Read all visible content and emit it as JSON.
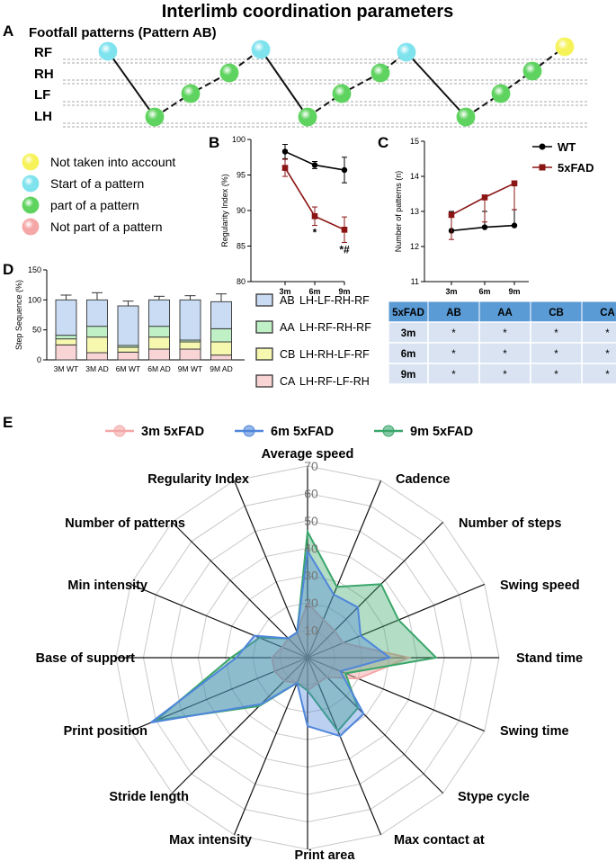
{
  "figure": {
    "title": "Interlimb coordination parameters",
    "panels": {
      "a": "A",
      "b": "B",
      "c": "C",
      "d": "D",
      "e": "E"
    }
  },
  "colors": {
    "wt": "#000000",
    "fad": "#8b1414",
    "cyan": "#7fe3ee",
    "green": "#5fd35f",
    "yellow": "#f6f35a",
    "pink": "#f5a6a6",
    "AB": "#c9dcf4",
    "AA": "#bff0c6",
    "CB": "#f6f8b0",
    "CA": "#f8d4d4",
    "table_head": "#5b9bd5",
    "table_row": "#d9e3f2",
    "radar_3m": "#f4a7a7",
    "radar_6m": "#4f86db",
    "radar_9m": "#3aa66a"
  },
  "panel_a": {
    "title": "Footfall patterns (Pattern AB)",
    "limbs": [
      "RF",
      "RH",
      "LF",
      "LH"
    ],
    "legend": [
      {
        "color": "yellow",
        "label": "Not taken into account"
      },
      {
        "color": "cyan",
        "label": "Start of a pattern"
      },
      {
        "color": "green",
        "label": "part of a pattern"
      },
      {
        "color": "pink",
        "label": "Not part of a pattern"
      }
    ]
  },
  "chart_data": [
    {
      "id": "B",
      "type": "line",
      "title": "",
      "xlabel": "",
      "ylabel": "Regularity Index (%)",
      "categories": [
        "3m",
        "6m",
        "9m"
      ],
      "ylim": [
        80,
        100
      ],
      "yticks": [
        "80",
        "85",
        "90",
        "95",
        "100"
      ],
      "series": [
        {
          "name": "WT",
          "color": "wt",
          "values": [
            98.3,
            96.4,
            95.7
          ],
          "errors": [
            1.0,
            0.5,
            1.8
          ]
        },
        {
          "name": "5xFAD",
          "color": "fad",
          "values": [
            96.0,
            89.2,
            87.3
          ],
          "errors": [
            1.2,
            1.3,
            1.8
          ]
        }
      ],
      "annotations": [
        {
          "category": "6m",
          "text": "*"
        },
        {
          "category": "9m",
          "text": "*#"
        }
      ]
    },
    {
      "id": "C",
      "type": "line",
      "title": "",
      "xlabel": "",
      "ylabel": "Number of patterns (n)",
      "categories": [
        "3m",
        "6m",
        "9m"
      ],
      "ylim": [
        11,
        15
      ],
      "yticks": [
        "11",
        "12",
        "13",
        "14",
        "15"
      ],
      "legend_position": "top-right",
      "series": [
        {
          "name": "WT",
          "color": "wt",
          "values": [
            12.45,
            12.55,
            12.6
          ],
          "errors": [
            0.55,
            0.45,
            0.45
          ]
        },
        {
          "name": "5xFAD",
          "color": "fad",
          "values": [
            12.9,
            13.4,
            13.8
          ],
          "errors": [
            0.7,
            0.7,
            0.75
          ]
        }
      ]
    },
    {
      "id": "D",
      "type": "bar",
      "title": "",
      "xlabel": "",
      "ylabel": "Step Sequence (%)",
      "categories": [
        "3M WT",
        "3M AD",
        "6M WT",
        "6M AD",
        "9M WT",
        "9M AD"
      ],
      "ylim": [
        0,
        150
      ],
      "yticks": [
        "0",
        "50",
        "100",
        "150"
      ],
      "stacked": true,
      "series": [
        {
          "name": "CA",
          "label": "LH-RF-LF-RH",
          "color": "CA",
          "values": [
            25,
            12,
            13,
            18,
            18,
            8
          ],
          "errors": [
            6,
            7,
            4,
            7,
            7,
            4
          ]
        },
        {
          "name": "CB",
          "label": "LH-RH-LF-RF",
          "color": "CB",
          "values": [
            10,
            26,
            8,
            20,
            12,
            22
          ],
          "errors": [
            4,
            8,
            3,
            8,
            4,
            8
          ]
        },
        {
          "name": "AA",
          "label": "LH-RF-RH-RF",
          "color": "AA",
          "values": [
            6,
            18,
            3,
            18,
            3,
            22
          ],
          "errors": [
            3,
            8,
            2,
            7,
            2,
            11
          ]
        },
        {
          "name": "AB",
          "label": "LH-LF-RH-RF",
          "color": "AB",
          "values": [
            59,
            44,
            66,
            44,
            67,
            45
          ],
          "errors": [
            8,
            12,
            8,
            6,
            7,
            13
          ]
        }
      ]
    },
    {
      "id": "E",
      "type": "radar",
      "title": "",
      "rmax": 70,
      "rticks": [
        "10",
        "20",
        "30",
        "40",
        "50",
        "60",
        "70"
      ],
      "axes": [
        "Average speed",
        "Cadence",
        "Number of steps",
        "Swing speed",
        "Stand time",
        "Swing time",
        "Stype cycle",
        "Max contact at",
        "Print area",
        "Max intensity",
        "Stride length",
        "Print position",
        "Base of support",
        "Min intensity",
        "Number of patterns",
        "Regularity Index"
      ],
      "series": [
        {
          "name": "3m 5xFAD",
          "color": "radar_3m",
          "values": [
            20,
            15,
            14,
            14,
            37,
            20,
            10,
            10,
            12,
            10,
            12,
            13,
            13,
            10,
            10,
            10
          ]
        },
        {
          "name": "6m 5xFAD",
          "color": "radar_6m",
          "values": [
            39,
            25,
            26,
            21,
            30,
            13,
            29,
            31,
            25,
            10,
            24,
            62,
            26,
            21,
            10,
            10
          ]
        },
        {
          "name": "9m 5xFAD",
          "color": "radar_9m",
          "values": [
            46,
            28,
            38,
            36,
            47,
            15,
            26,
            29,
            12,
            10,
            25,
            60,
            28,
            19,
            10,
            10
          ]
        }
      ]
    }
  ],
  "table": {
    "headers": [
      "5xFAD",
      "AB",
      "AA",
      "CB",
      "CA"
    ],
    "rows": [
      [
        "3m",
        "*",
        "*",
        "*",
        "*"
      ],
      [
        "6m",
        "*",
        "*",
        "*",
        "*"
      ],
      [
        "9m",
        "*",
        "*",
        "*",
        "*"
      ]
    ]
  }
}
